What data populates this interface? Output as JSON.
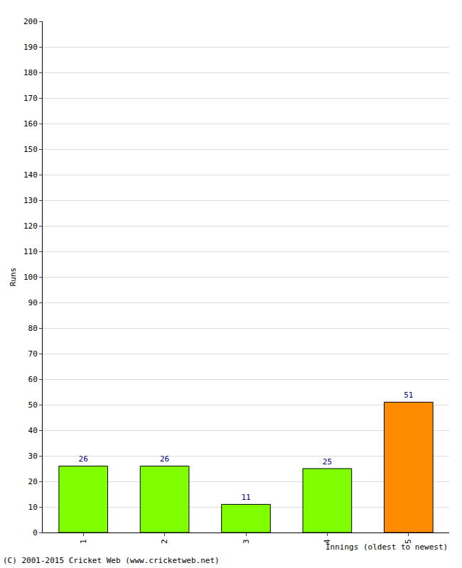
{
  "chart_data": {
    "type": "bar",
    "categories": [
      "1",
      "2",
      "3",
      "4",
      "5"
    ],
    "values": [
      26,
      26,
      11,
      25,
      51
    ],
    "colors": [
      "#7fff00",
      "#7fff00",
      "#7fff00",
      "#7fff00",
      "#ff8c00"
    ],
    "x_label": "Innings (oldest to newest)",
    "y_label": "Runs",
    "ylim": [
      0,
      200
    ],
    "yticks": [
      0,
      10,
      20,
      30,
      40,
      50,
      60,
      70,
      80,
      90,
      100,
      110,
      120,
      130,
      140,
      150,
      160,
      170,
      180,
      190,
      200
    ],
    "grid": true,
    "data_labels": true,
    "annotations": [
      "(C) 2001-2015 Cricket Web (www.cricketweb.net)"
    ]
  }
}
